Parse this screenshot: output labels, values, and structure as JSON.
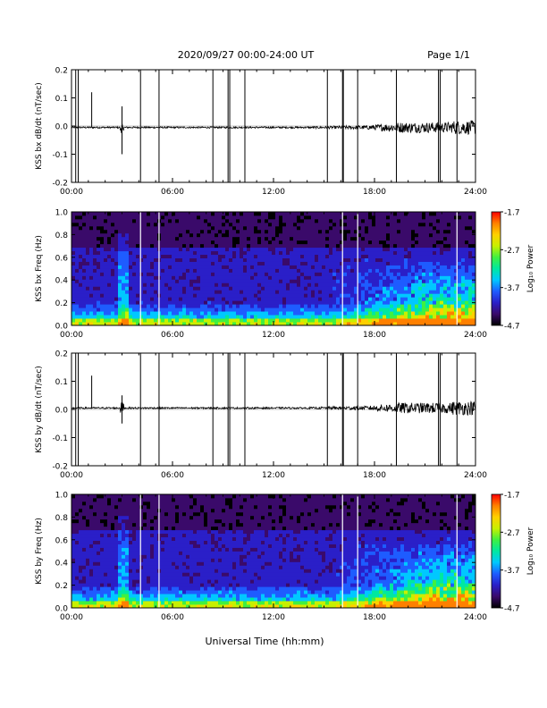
{
  "header": {
    "title": "2020/09/27  00:00-24:00 UT",
    "page": "Page 1/1"
  },
  "footer": {
    "xlabel": "Universal Time (hh:mm)"
  },
  "colorbar": {
    "label": "Log₁₀ Power",
    "ticks": [
      "-1.7",
      "-2.7",
      "-3.7",
      "-4.7"
    ],
    "colors": [
      "#000000",
      "#3a0a6a",
      "#2a1fc8",
      "#1e5cff",
      "#00c8ff",
      "#00e8a0",
      "#40f040",
      "#c8f000",
      "#ffd000",
      "#ff8000",
      "#ff0000"
    ]
  },
  "chart_data": [
    {
      "type": "line",
      "ylabel": "KSS bx dB/dt (nT/sec)",
      "ylim": [
        -0.2,
        0.2
      ],
      "yticks": [
        "0.2",
        "0.1",
        "0.0",
        "-0.1",
        "-0.2"
      ],
      "xticks": [
        "00:00",
        "06:00",
        "12:00",
        "18:00",
        "24:00"
      ],
      "xlim_hours": [
        0,
        24
      ],
      "baseline": -0.005,
      "spike_times_hours": [
        0.25,
        0.4,
        4.1,
        5.2,
        8.4,
        9.3,
        9.4,
        10.3,
        15.2,
        16.1,
        16.15,
        17.0,
        19.3,
        21.8,
        21.9,
        22.9
      ],
      "events": [
        {
          "x": 1.2,
          "y": 0.12
        },
        {
          "x": 3.0,
          "y": 0.07
        },
        {
          "x": 3.0,
          "y": -0.1
        }
      ],
      "series": [
        {
          "values": []
        }
      ]
    },
    {
      "type": "heatmap",
      "ylabel": "KSS bx Freq (Hz)",
      "ylim": [
        0.0,
        1.0
      ],
      "yticks": [
        "1.0",
        "0.8",
        "0.6",
        "0.4",
        "0.2",
        "0.0"
      ],
      "xticks": [
        "00:00",
        "06:00",
        "12:00",
        "18:00",
        "24:00"
      ],
      "xlim_hours": [
        0,
        24
      ],
      "value_range": [
        -4.7,
        -1.7
      ],
      "gap_times_hours": [
        4.1,
        5.2,
        16.1,
        17.0,
        22.9
      ]
    },
    {
      "type": "line",
      "ylabel": "KSS by dB/dt (nT/sec)",
      "ylim": [
        -0.2,
        0.2
      ],
      "yticks": [
        "0.2",
        "0.1",
        "0.0",
        "-0.1",
        "-0.2"
      ],
      "xticks": [
        "00:00",
        "06:00",
        "12:00",
        "18:00",
        "24:00"
      ],
      "xlim_hours": [
        0,
        24
      ],
      "baseline": 0.005,
      "spike_times_hours": [
        0.25,
        0.4,
        4.1,
        5.2,
        8.4,
        9.3,
        9.4,
        10.3,
        15.2,
        16.1,
        16.15,
        17.0,
        19.3,
        21.8,
        21.9,
        22.9
      ],
      "events": [
        {
          "x": 1.2,
          "y": 0.12
        },
        {
          "x": 3.0,
          "y": 0.05
        },
        {
          "x": 3.0,
          "y": -0.05
        }
      ],
      "series": [
        {
          "values": []
        }
      ]
    },
    {
      "type": "heatmap",
      "ylabel": "KSS by Freq (Hz)",
      "ylim": [
        0.0,
        1.0
      ],
      "yticks": [
        "1.0",
        "0.8",
        "0.6",
        "0.4",
        "0.2",
        "0.0"
      ],
      "xticks": [
        "00:00",
        "06:00",
        "12:00",
        "18:00",
        "24:00"
      ],
      "xlim_hours": [
        0,
        24
      ],
      "value_range": [
        -4.7,
        -1.7
      ],
      "gap_times_hours": [
        4.1,
        5.2,
        16.1,
        17.0,
        22.9
      ]
    }
  ]
}
